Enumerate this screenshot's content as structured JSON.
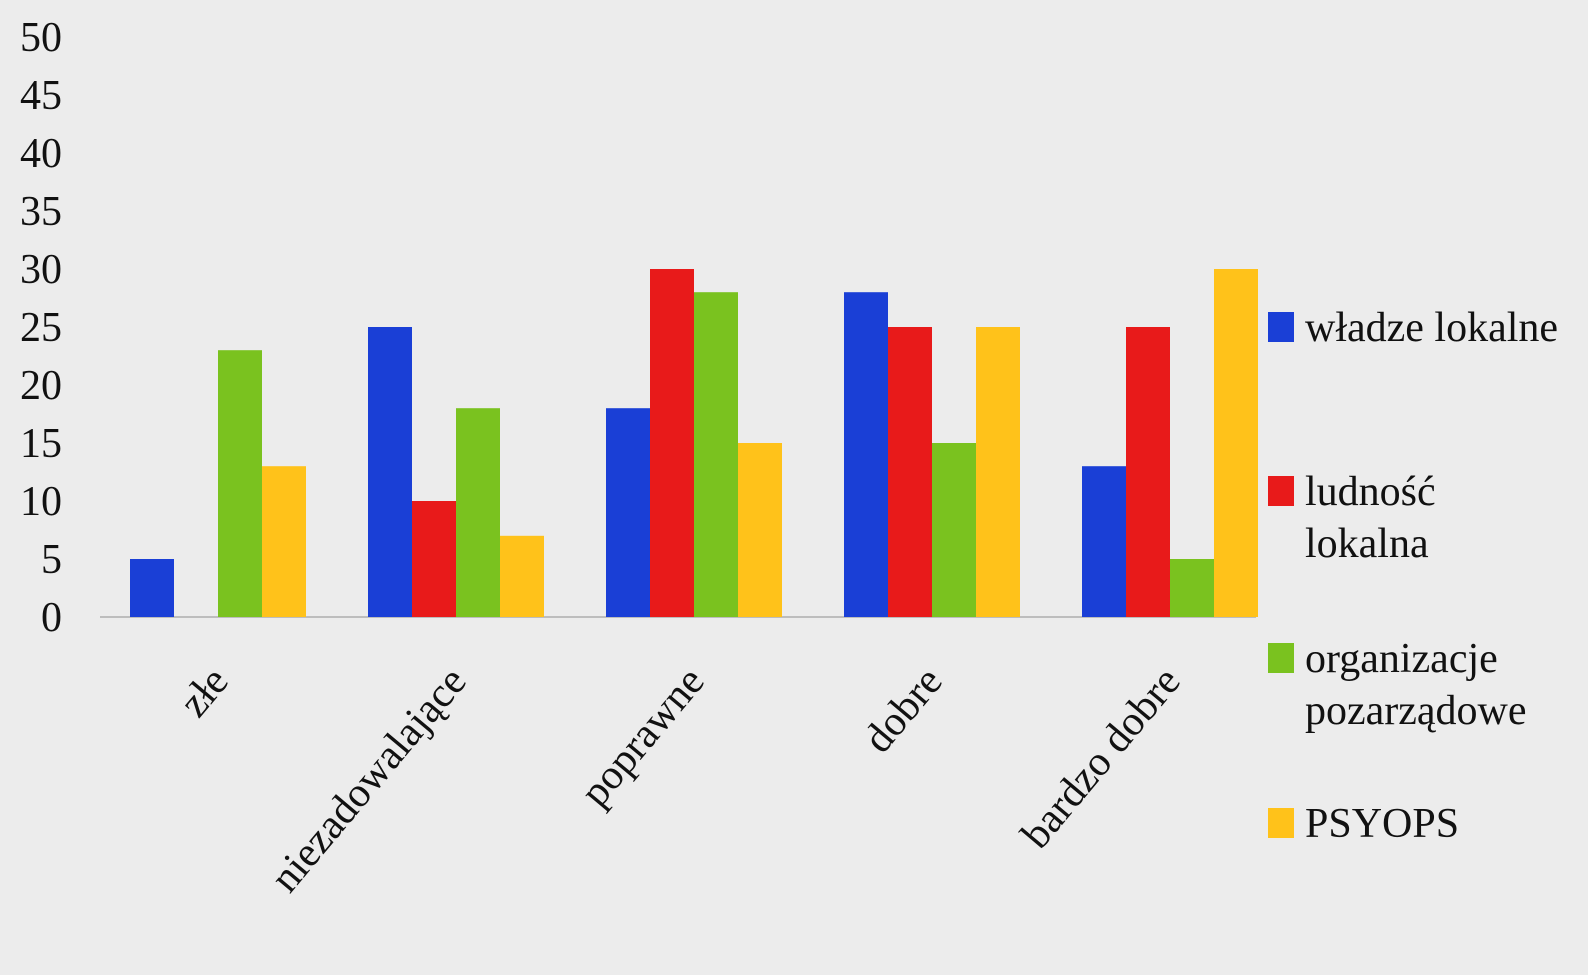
{
  "chart_data": {
    "type": "bar",
    "title": "",
    "xlabel": "",
    "ylabel": "",
    "ylim": [
      0,
      50
    ],
    "yticks": [
      0,
      5,
      10,
      15,
      20,
      25,
      30,
      35,
      40,
      45,
      50
    ],
    "categories": [
      "złe",
      "niezadowalające",
      "poprawne",
      "dobre",
      "bardzo dobre"
    ],
    "series": [
      {
        "name": "władze lokalne",
        "color": "#1a3fd6",
        "values": [
          5,
          25,
          18,
          28,
          13
        ]
      },
      {
        "name": "ludność lokalna",
        "color": "#e81a1a",
        "values": [
          0,
          10,
          30,
          25,
          25
        ]
      },
      {
        "name": "organizacje pozarządowe",
        "color": "#7ac21f",
        "values": [
          23,
          18,
          28,
          15,
          5
        ]
      },
      {
        "name": "PSYOPS",
        "color": "#ffc21a",
        "values": [
          13,
          7,
          15,
          25,
          30
        ]
      }
    ],
    "legend_position": "right",
    "grid": false
  }
}
